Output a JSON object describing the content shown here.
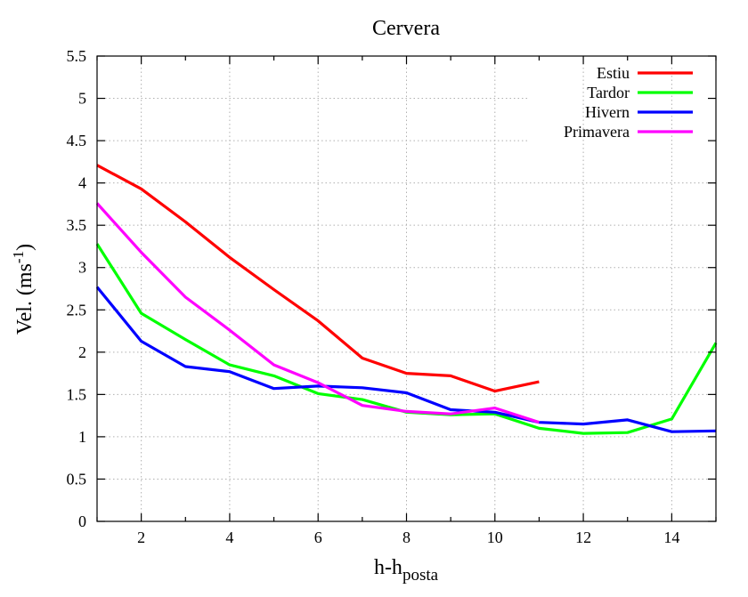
{
  "chart_data": {
    "type": "line",
    "title": "Cervera",
    "xlabel": "h-h",
    "xlabel_subscript": "posta",
    "ylabel": "Vel. (ms",
    "ylabel_superscript": "-1",
    "ylabel_close": ")",
    "xlim": [
      1,
      15
    ],
    "ylim": [
      0,
      5.5
    ],
    "x_ticks": [
      2,
      4,
      6,
      8,
      10,
      12,
      14
    ],
    "y_ticks": [
      0,
      0.5,
      1,
      1.5,
      2,
      2.5,
      3,
      3.5,
      4,
      4.5,
      5,
      5.5
    ],
    "x_tick_labels": [
      "2",
      "4",
      "6",
      "8",
      "10",
      "12",
      "14"
    ],
    "y_tick_labels": [
      "0",
      "0.5",
      "1",
      "1.5",
      "2",
      "2.5",
      "3",
      "3.5",
      "4",
      "4.5",
      "5",
      "5.5"
    ],
    "grid": true,
    "legend_position": "top-right",
    "series": [
      {
        "name": "Estiu",
        "color": "#ff0000",
        "x": [
          1,
          2,
          3,
          4,
          5,
          6,
          7,
          8,
          9,
          10,
          11
        ],
        "y": [
          4.21,
          3.93,
          3.54,
          3.12,
          2.74,
          2.37,
          1.93,
          1.75,
          1.72,
          1.54,
          1.65
        ]
      },
      {
        "name": "Tardor",
        "color": "#00ff00",
        "x": [
          1,
          2,
          3,
          4,
          5,
          6,
          7,
          8,
          9,
          10,
          11,
          12,
          13,
          14,
          15
        ],
        "y": [
          3.28,
          2.46,
          2.15,
          1.85,
          1.72,
          1.51,
          1.44,
          1.29,
          1.26,
          1.27,
          1.1,
          1.04,
          1.05,
          1.21,
          2.11
        ]
      },
      {
        "name": "Hivern",
        "color": "#0000ff",
        "x": [
          1,
          2,
          3,
          4,
          5,
          6,
          7,
          8,
          9,
          10,
          11,
          12,
          13,
          14,
          15
        ],
        "y": [
          2.77,
          2.13,
          1.83,
          1.77,
          1.57,
          1.6,
          1.58,
          1.52,
          1.32,
          1.29,
          1.17,
          1.15,
          1.2,
          1.06,
          1.07
        ]
      },
      {
        "name": "Primavera",
        "color": "#ff00ff",
        "x": [
          1,
          2,
          3,
          4,
          5,
          6,
          7,
          8,
          9,
          10,
          11
        ],
        "y": [
          3.76,
          3.18,
          2.65,
          2.26,
          1.85,
          1.64,
          1.37,
          1.3,
          1.27,
          1.34,
          1.17
        ]
      }
    ]
  }
}
